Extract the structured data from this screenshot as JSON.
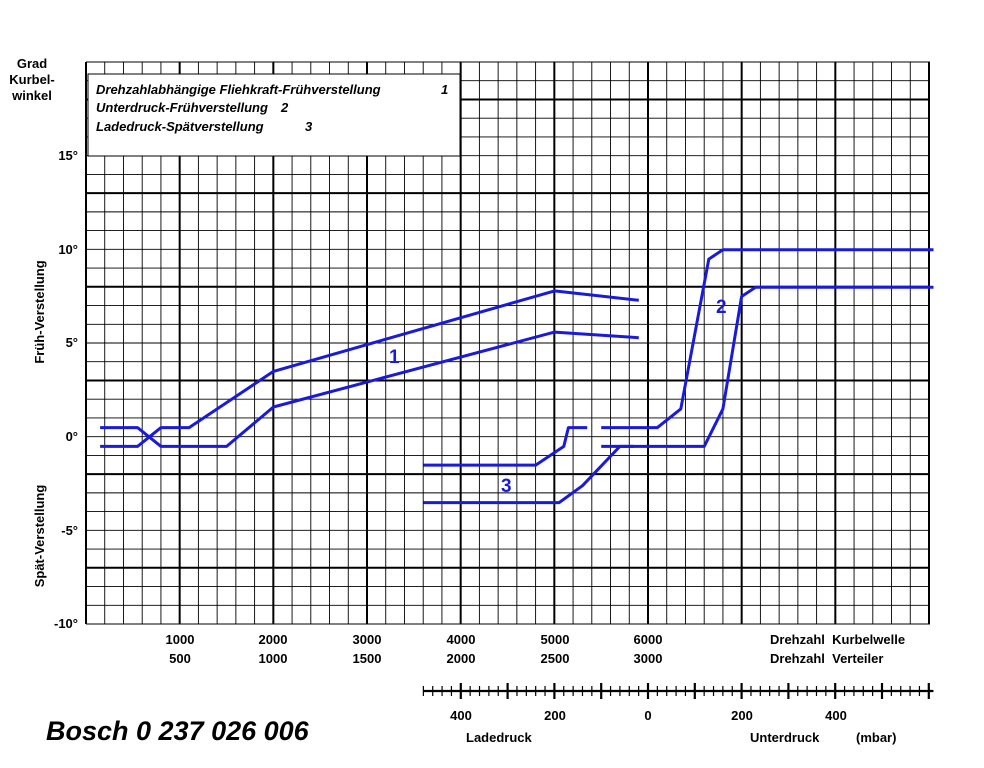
{
  "chart_data": {
    "type": "line",
    "title": "Bosch 0 237 026 006",
    "ylabel_top": [
      "Grad",
      "Kurbel-",
      "winkel"
    ],
    "ylabel_upper": "Früh-Verstellung",
    "ylabel_lower": "Spät-Verstellung",
    "ylim": [
      -10,
      15
    ],
    "yticks": [
      "15°",
      "10°",
      "5°",
      "0°",
      "-5°",
      "-10°"
    ],
    "grid": true,
    "legend_position": "top-left",
    "legend": [
      {
        "text": "Drehzahlabhängige Fliehkraft-Frühverstellung",
        "num": "1"
      },
      {
        "text": "Unterdruck-Frühverstellung",
        "num": "2"
      },
      {
        "text": "Ladedruck-Spätverstellung",
        "num": "3"
      }
    ],
    "axis_rpm": {
      "crankshaft_ticks": [
        "1000",
        "2000",
        "3000",
        "4000",
        "5000",
        "6000"
      ],
      "distributor_ticks": [
        "500",
        "1000",
        "1500",
        "2000",
        "2500",
        "3000"
      ],
      "crankshaft_label": "Drehzahl  Kurbelwelle",
      "distributor_label": "Drehzahl  Verteiler",
      "xlim": [
        0,
        9000
      ]
    },
    "axis_pressure": {
      "ticks": [
        "400",
        "200",
        "0",
        "200",
        "400"
      ],
      "tick_values": [
        -400,
        -200,
        0,
        200,
        400
      ],
      "ladedruck_label": "Ladedruck",
      "unterdruck_label": "Unterdruck",
      "unit": "(mbar)",
      "xlim": [
        -480,
        610
      ]
    },
    "series": [
      {
        "id": "1",
        "axis": "rpm",
        "band": "upper",
        "points": [
          [
            150,
            0.5
          ],
          [
            550,
            0.5
          ],
          [
            800,
            -0.5
          ],
          [
            1500,
            -0.5
          ],
          [
            2000,
            1.6
          ],
          [
            5000,
            5.6
          ],
          [
            5900,
            5.3
          ]
        ]
      },
      {
        "id": "1",
        "axis": "rpm",
        "band": "lower",
        "points": [
          [
            150,
            -0.5
          ],
          [
            550,
            -0.5
          ],
          [
            800,
            0.5
          ],
          [
            1100,
            0.5
          ],
          [
            2000,
            3.5
          ],
          [
            5000,
            7.8
          ],
          [
            5900,
            7.3
          ]
        ]
      },
      {
        "id": "2",
        "axis": "pressure",
        "band": "early",
        "points": [
          [
            -100,
            0.5
          ],
          [
            20,
            0.5
          ],
          [
            70,
            1.5
          ],
          [
            130,
            9.5
          ],
          [
            160,
            10
          ],
          [
            610,
            10
          ]
        ]
      },
      {
        "id": "2",
        "axis": "pressure",
        "band": "late",
        "points": [
          [
            -100,
            -0.5
          ],
          [
            120,
            -0.5
          ],
          [
            160,
            1.5
          ],
          [
            200,
            7.5
          ],
          [
            230,
            8
          ],
          [
            610,
            8
          ]
        ]
      },
      {
        "id": "3",
        "axis": "pressure",
        "band": "upper",
        "points": [
          [
            -480,
            -1.5
          ],
          [
            -240,
            -1.5
          ],
          [
            -180,
            -0.5
          ],
          [
            -170,
            0.5
          ],
          [
            -130,
            0.5
          ]
        ]
      },
      {
        "id": "3",
        "axis": "pressure",
        "band": "lower",
        "points": [
          [
            -480,
            -3.5
          ],
          [
            -190,
            -3.5
          ],
          [
            -140,
            -2.6
          ],
          [
            -60,
            -0.5
          ],
          [
            -30,
            -0.5
          ]
        ]
      }
    ],
    "series_labels": [
      "1",
      "2",
      "3"
    ]
  }
}
